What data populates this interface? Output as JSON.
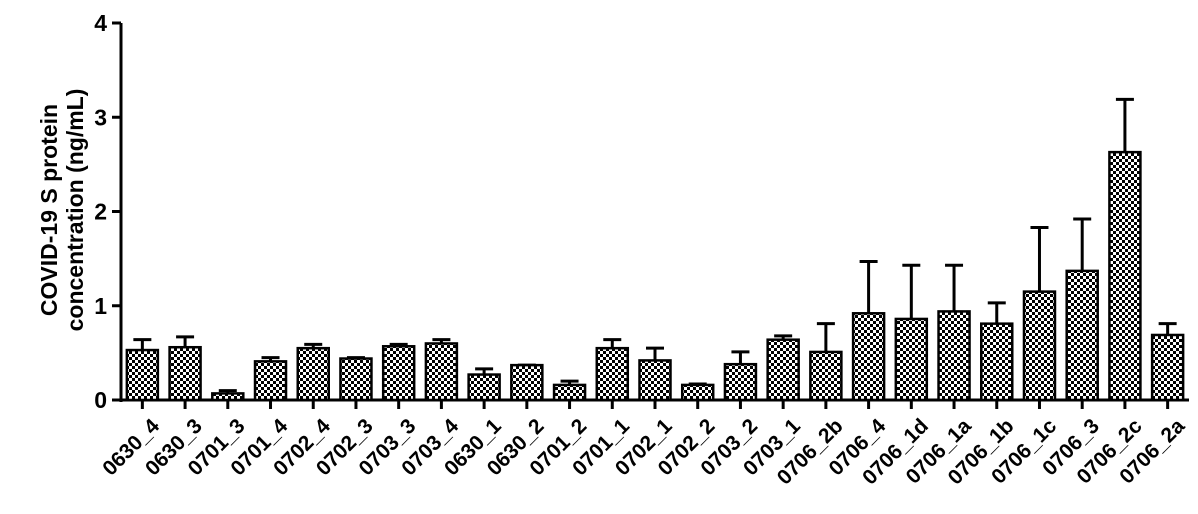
{
  "chart_data": {
    "type": "bar",
    "title": "",
    "xlabel": "",
    "ylabel_lines": [
      "COVID-19 S protein",
      "concentration (ng/mL)"
    ],
    "ylim": [
      0,
      4
    ],
    "yticks": [
      0,
      1,
      2,
      3,
      4
    ],
    "categories": [
      "0630_4",
      "0630_3",
      "0701_3",
      "0701_4",
      "0702_4",
      "0702_3",
      "0703_3",
      "0703_4",
      "0630_1",
      "0630_2",
      "0701_2",
      "0701_1",
      "0702_1",
      "0702_2",
      "0703_2",
      "0703_1",
      "0706_2b",
      "0706_4",
      "0706_1d",
      "0706_1a",
      "0706_1b",
      "0706_1c",
      "0706_3",
      "0706_2c",
      "0706_2a"
    ],
    "values": [
      0.53,
      0.56,
      0.07,
      0.41,
      0.55,
      0.44,
      0.57,
      0.6,
      0.27,
      0.37,
      0.16,
      0.55,
      0.42,
      0.16,
      0.38,
      0.64,
      0.51,
      0.92,
      0.86,
      0.94,
      0.81,
      1.15,
      1.37,
      2.63,
      0.69
    ],
    "errors": [
      0.11,
      0.11,
      0.03,
      0.04,
      0.04,
      0.01,
      0.02,
      0.04,
      0.06,
      0.0,
      0.04,
      0.09,
      0.13,
      0.01,
      0.13,
      0.04,
      0.3,
      0.55,
      0.57,
      0.49,
      0.22,
      0.68,
      0.55,
      0.56,
      0.12
    ],
    "bar_pattern": "checkered",
    "colors": {
      "fill_dark": "#000000",
      "fill_light": "#ffffff",
      "axis": "#000000"
    },
    "grid": false,
    "legend": "none"
  }
}
